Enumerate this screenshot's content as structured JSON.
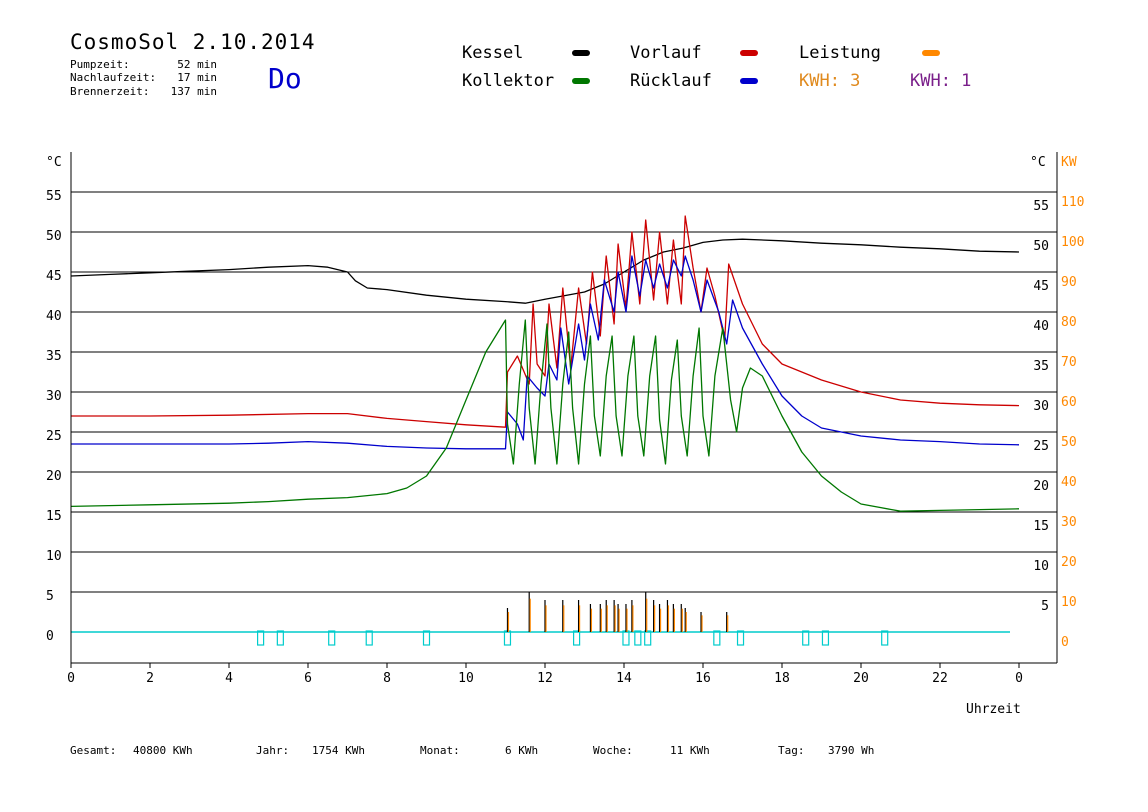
{
  "header": {
    "title": "CosmoSol 2.10.2014",
    "day": "Do",
    "stats": [
      {
        "label": "Pumpzeit:",
        "value": "52 min"
      },
      {
        "label": "Nachlaufzeit:",
        "value": "17 min"
      },
      {
        "label": "Brennerzeit:",
        "value": "137 min"
      }
    ]
  },
  "legend": {
    "kessel": "Kessel",
    "vorlauf": "Vorlauf",
    "leistung": "Leistung",
    "kollektor": "Kollektor",
    "ruecklauf": "Rücklauf",
    "kwh_a": "KWH: 3",
    "kwh_b": "KWH: 1"
  },
  "colors": {
    "kessel": "#000000",
    "vorlauf": "#cc0000",
    "ruecklauf": "#0000cc",
    "kollektor": "#007700",
    "leistung": "#ff8800",
    "kwh_a": "#e08a1e",
    "kwh_b": "#7a1f8a",
    "pump": "#00cccc",
    "grid": "#000000",
    "day": "#0000cc"
  },
  "footer": {
    "gesamt_label": "Gesamt:",
    "gesamt_value": "40800 KWh",
    "jahr_label": "Jahr:",
    "jahr_value": "1754 KWh",
    "monat_label": "Monat:",
    "monat_value": "6 KWh",
    "woche_label": "Woche:",
    "woche_value": "11 KWh",
    "tag_label": "Tag:",
    "tag_value": "3790 Wh"
  },
  "chart_data": {
    "type": "line",
    "xlabel": "Uhrzeit",
    "xlim": [
      0,
      24
    ],
    "x_ticks": [
      "0",
      "2",
      "4",
      "6",
      "8",
      "10",
      "12",
      "14",
      "16",
      "18",
      "20",
      "22",
      "0"
    ],
    "y_left_unit": "°C",
    "y_right_unit_c": "°C",
    "y_right_unit_kw": "KW",
    "ylim": [
      -4,
      59
    ],
    "y_ticks_left": [
      "0",
      "5",
      "10",
      "15",
      "20",
      "25",
      "30",
      "35",
      "40",
      "45",
      "50",
      "55"
    ],
    "y_ticks_right_c": [
      "5",
      "10",
      "15",
      "20",
      "25",
      "30",
      "35",
      "40",
      "45",
      "50",
      "55"
    ],
    "y_ticks_right_kw": [
      "0",
      "10",
      "20",
      "30",
      "40",
      "50",
      "60",
      "70",
      "80",
      "90",
      "100",
      "110"
    ],
    "grid": true,
    "series": [
      {
        "name": "Kessel",
        "key": "kessel",
        "points": [
          [
            0,
            44.5
          ],
          [
            1,
            44.7
          ],
          [
            2,
            44.9
          ],
          [
            3,
            45.1
          ],
          [
            4,
            45.3
          ],
          [
            5,
            45.6
          ],
          [
            6,
            45.8
          ],
          [
            6.5,
            45.6
          ],
          [
            7,
            45.0
          ],
          [
            7.2,
            43.9
          ],
          [
            7.5,
            43.0
          ],
          [
            8,
            42.8
          ],
          [
            9,
            42.1
          ],
          [
            10,
            41.6
          ],
          [
            11,
            41.3
          ],
          [
            11.5,
            41.1
          ],
          [
            12,
            41.6
          ],
          [
            13,
            42.5
          ],
          [
            13.5,
            43.5
          ],
          [
            14,
            45.0
          ],
          [
            14.5,
            46.5
          ],
          [
            15,
            47.5
          ],
          [
            15.5,
            48.0
          ],
          [
            16,
            48.7
          ],
          [
            16.5,
            49.0
          ],
          [
            17,
            49.1
          ],
          [
            18,
            48.9
          ],
          [
            19,
            48.6
          ],
          [
            20,
            48.4
          ],
          [
            21,
            48.1
          ],
          [
            22,
            47.9
          ],
          [
            23,
            47.6
          ],
          [
            24,
            47.5
          ]
        ]
      },
      {
        "name": "Vorlauf",
        "key": "vorlauf",
        "points": [
          [
            0,
            27.0
          ],
          [
            2,
            27.0
          ],
          [
            4,
            27.1
          ],
          [
            6,
            27.3
          ],
          [
            7,
            27.3
          ],
          [
            8,
            26.7
          ],
          [
            9,
            26.3
          ],
          [
            10,
            25.9
          ],
          [
            11,
            25.6
          ],
          [
            11.05,
            32.5
          ],
          [
            11.3,
            34.5
          ],
          [
            11.6,
            31.0
          ],
          [
            11.7,
            41.0
          ],
          [
            11.8,
            33.5
          ],
          [
            12,
            32.0
          ],
          [
            12.1,
            41.0
          ],
          [
            12.3,
            33.0
          ],
          [
            12.45,
            43.0
          ],
          [
            12.65,
            33.0
          ],
          [
            12.85,
            43.0
          ],
          [
            13.05,
            36.0
          ],
          [
            13.2,
            45.0
          ],
          [
            13.4,
            37.0
          ],
          [
            13.55,
            47.0
          ],
          [
            13.75,
            38.5
          ],
          [
            13.85,
            48.5
          ],
          [
            14.05,
            40.5
          ],
          [
            14.2,
            50.0
          ],
          [
            14.4,
            41.0
          ],
          [
            14.55,
            51.5
          ],
          [
            14.75,
            41.5
          ],
          [
            14.9,
            50.0
          ],
          [
            15.1,
            41.0
          ],
          [
            15.25,
            49.0
          ],
          [
            15.45,
            41.0
          ],
          [
            15.55,
            52.0
          ],
          [
            15.75,
            45.5
          ],
          [
            15.95,
            40.0
          ],
          [
            16.1,
            45.5
          ],
          [
            16.3,
            42.0
          ],
          [
            16.55,
            36.5
          ],
          [
            16.65,
            46.0
          ],
          [
            17,
            41.0
          ],
          [
            17.5,
            36.0
          ],
          [
            18,
            33.5
          ],
          [
            19,
            31.5
          ],
          [
            20,
            30.0
          ],
          [
            21,
            29.0
          ],
          [
            22,
            28.6
          ],
          [
            23,
            28.4
          ],
          [
            24,
            28.3
          ]
        ]
      },
      {
        "name": "Rücklauf",
        "key": "ruecklauf",
        "points": [
          [
            0,
            23.5
          ],
          [
            2,
            23.5
          ],
          [
            4,
            23.5
          ],
          [
            5,
            23.6
          ],
          [
            6,
            23.8
          ],
          [
            7,
            23.6
          ],
          [
            8,
            23.2
          ],
          [
            9,
            23.0
          ],
          [
            10,
            22.9
          ],
          [
            11,
            22.9
          ],
          [
            11.05,
            27.5
          ],
          [
            11.3,
            26.0
          ],
          [
            11.45,
            24.0
          ],
          [
            11.55,
            32.0
          ],
          [
            11.8,
            30.5
          ],
          [
            12,
            29.5
          ],
          [
            12.1,
            33.5
          ],
          [
            12.3,
            31.5
          ],
          [
            12.4,
            38.0
          ],
          [
            12.6,
            31.0
          ],
          [
            12.85,
            38.5
          ],
          [
            13,
            34.0
          ],
          [
            13.15,
            41.0
          ],
          [
            13.35,
            36.5
          ],
          [
            13.5,
            44.0
          ],
          [
            13.75,
            40.0
          ],
          [
            13.85,
            45.0
          ],
          [
            14.05,
            40.0
          ],
          [
            14.2,
            47.0
          ],
          [
            14.4,
            42.0
          ],
          [
            14.55,
            46.5
          ],
          [
            14.75,
            43.0
          ],
          [
            14.9,
            46.0
          ],
          [
            15.1,
            43.0
          ],
          [
            15.25,
            46.5
          ],
          [
            15.45,
            44.5
          ],
          [
            15.55,
            47.0
          ],
          [
            15.75,
            44.0
          ],
          [
            15.95,
            40.0
          ],
          [
            16.1,
            44.0
          ],
          [
            16.4,
            40.0
          ],
          [
            16.6,
            36.0
          ],
          [
            16.75,
            41.5
          ],
          [
            17,
            38.0
          ],
          [
            17.5,
            33.5
          ],
          [
            18,
            29.5
          ],
          [
            18.5,
            27.0
          ],
          [
            19,
            25.5
          ],
          [
            20,
            24.5
          ],
          [
            21,
            24.0
          ],
          [
            22,
            23.8
          ],
          [
            23,
            23.5
          ],
          [
            24,
            23.4
          ]
        ]
      },
      {
        "name": "Kollektor",
        "key": "kollektor",
        "points": [
          [
            0,
            15.7
          ],
          [
            2,
            15.9
          ],
          [
            4,
            16.1
          ],
          [
            5,
            16.3
          ],
          [
            6,
            16.6
          ],
          [
            7,
            16.8
          ],
          [
            8,
            17.3
          ],
          [
            8.5,
            18.0
          ],
          [
            9,
            19.5
          ],
          [
            9.5,
            23.0
          ],
          [
            10,
            29.0
          ],
          [
            10.5,
            35.0
          ],
          [
            11,
            39.0
          ],
          [
            11.05,
            26.0
          ],
          [
            11.2,
            21.0
          ],
          [
            11.35,
            31.0
          ],
          [
            11.5,
            39.0
          ],
          [
            11.6,
            28.0
          ],
          [
            11.75,
            21.0
          ],
          [
            11.9,
            31.0
          ],
          [
            12.05,
            38.5
          ],
          [
            12.15,
            28.0
          ],
          [
            12.3,
            21.0
          ],
          [
            12.45,
            31.0
          ],
          [
            12.6,
            37.5
          ],
          [
            12.7,
            28.0
          ],
          [
            12.85,
            21.0
          ],
          [
            13.0,
            31.0
          ],
          [
            13.15,
            37.0
          ],
          [
            13.25,
            27.0
          ],
          [
            13.4,
            22.0
          ],
          [
            13.55,
            32.0
          ],
          [
            13.7,
            37.0
          ],
          [
            13.8,
            27.0
          ],
          [
            13.95,
            22.0
          ],
          [
            14.1,
            32.0
          ],
          [
            14.25,
            37.0
          ],
          [
            14.35,
            27.0
          ],
          [
            14.5,
            22.0
          ],
          [
            14.65,
            32.0
          ],
          [
            14.8,
            37.0
          ],
          [
            14.9,
            26.5
          ],
          [
            15.05,
            21.0
          ],
          [
            15.2,
            31.5
          ],
          [
            15.35,
            36.5
          ],
          [
            15.45,
            27.0
          ],
          [
            15.6,
            22.0
          ],
          [
            15.75,
            32.0
          ],
          [
            15.9,
            38.0
          ],
          [
            16.0,
            27.0
          ],
          [
            16.15,
            22.0
          ],
          [
            16.3,
            32.0
          ],
          [
            16.5,
            38.0
          ],
          [
            16.7,
            29.0
          ],
          [
            16.85,
            25.0
          ],
          [
            17,
            30.5
          ],
          [
            17.2,
            33.0
          ],
          [
            17.5,
            32.0
          ],
          [
            18,
            27.0
          ],
          [
            18.5,
            22.5
          ],
          [
            19,
            19.5
          ],
          [
            19.5,
            17.5
          ],
          [
            20,
            16.0
          ],
          [
            21,
            15.1
          ],
          [
            22,
            15.2
          ],
          [
            23,
            15.3
          ],
          [
            24,
            15.4
          ]
        ]
      }
    ],
    "leistung_spikes_h": [
      11.05,
      11.6,
      12.0,
      12.45,
      12.85,
      13.15,
      13.4,
      13.55,
      13.75,
      13.85,
      14.05,
      14.2,
      14.55,
      14.75,
      14.9,
      15.1,
      15.25,
      15.45,
      15.55,
      15.95,
      16.6
    ],
    "leistung_spikes_kw": [
      6,
      10,
      8,
      8,
      8,
      7,
      7,
      8,
      8,
      7,
      7,
      8,
      10,
      8,
      7,
      8,
      7,
      7,
      6,
      5,
      5
    ],
    "pump_marks_h": [
      4.8,
      5.3,
      6.6,
      7.55,
      9.0,
      11.05,
      12.8,
      14.05,
      14.35,
      14.6,
      16.35,
      16.95,
      18.6,
      19.1,
      20.6
    ]
  }
}
